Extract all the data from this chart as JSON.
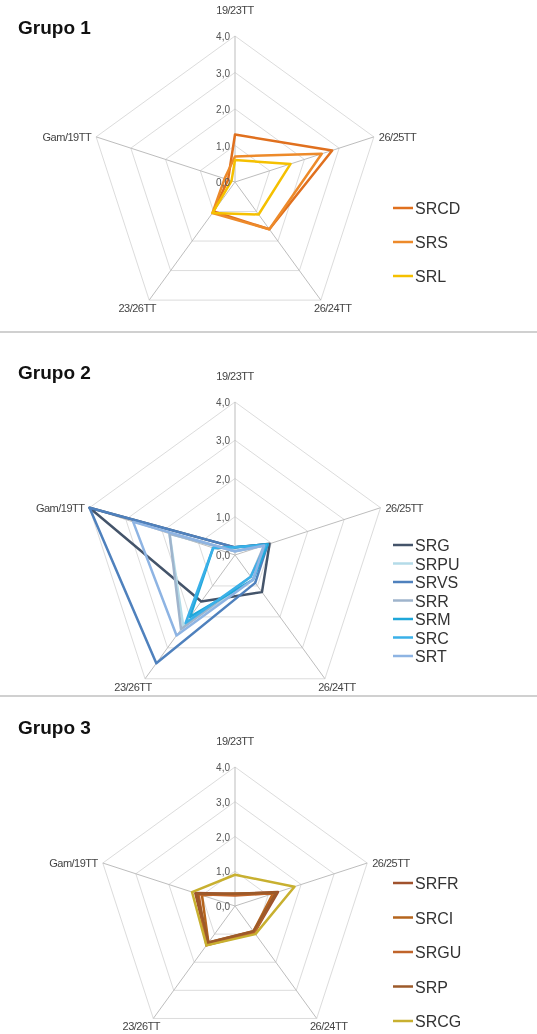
{
  "chart_data": [
    {
      "type": "radar",
      "title": "Grupo 1",
      "categories": [
        "19/23TT",
        "26/25TT",
        "26/24TT",
        "23/26TT",
        "Gam/19TT"
      ],
      "ylim": [
        0,
        4
      ],
      "yticks": [
        {
          "value": 0,
          "label": "0,0"
        },
        {
          "value": 1,
          "label": "1,0"
        },
        {
          "value": 2,
          "label": "2,0"
        },
        {
          "value": 3,
          "label": "3,0"
        },
        {
          "value": 4,
          "label": "4,0"
        }
      ],
      "grid": true,
      "legend": "right",
      "series": [
        {
          "name": "SRCD",
          "color": "#e0701e",
          "values": [
            1.3,
            2.8,
            1.6,
            1.0,
            0.2
          ]
        },
        {
          "name": "SRS",
          "color": "#ed8a2a",
          "values": [
            0.7,
            2.5,
            1.6,
            1.05,
            0.3
          ]
        },
        {
          "name": "SRL",
          "color": "#f5c000",
          "values": [
            0.6,
            1.6,
            1.1,
            1.05,
            0.1
          ]
        }
      ]
    },
    {
      "type": "radar",
      "title": "Grupo 2",
      "categories": [
        "19/23TT",
        "26/25TT",
        "26/24TT",
        "23/26TT",
        "Gam/19TT"
      ],
      "ylim": [
        0,
        4
      ],
      "yticks": [
        {
          "value": 0,
          "label": "0,0"
        },
        {
          "value": 1,
          "label": "1,0"
        },
        {
          "value": 2,
          "label": "2,0"
        },
        {
          "value": 3,
          "label": "3,0"
        },
        {
          "value": 4,
          "label": "4,0"
        }
      ],
      "grid": true,
      "legend": "right",
      "series": [
        {
          "name": "SRG",
          "color": "#44546a",
          "values": [
            0.2,
            0.95,
            1.2,
            1.5,
            4.0
          ]
        },
        {
          "name": "SRPU",
          "color": "#b4dbe8",
          "values": [
            0.1,
            0.8,
            0.8,
            2.3,
            1.8
          ]
        },
        {
          "name": "SRVS",
          "color": "#4f81bd",
          "values": [
            0.2,
            0.9,
            0.9,
            3.5,
            4.0
          ]
        },
        {
          "name": "SRR",
          "color": "#9fb4cc",
          "values": [
            0.1,
            0.8,
            0.7,
            2.4,
            1.8
          ]
        },
        {
          "name": "SRM",
          "color": "#1fa7d9",
          "values": [
            0.2,
            0.9,
            0.8,
            2.0,
            0.6
          ]
        },
        {
          "name": "SRC",
          "color": "#3ab0e8",
          "values": [
            0.2,
            0.85,
            0.7,
            2.2,
            0.6
          ]
        },
        {
          "name": "SRT",
          "color": "#8eb4e3",
          "values": [
            0.1,
            0.8,
            0.8,
            2.6,
            2.8
          ]
        }
      ]
    },
    {
      "type": "radar",
      "title": "Grupo 3",
      "categories": [
        "19/23TT",
        "26/25TT",
        "26/24TT",
        "23/26TT",
        "Gam/19TT"
      ],
      "ylim": [
        0,
        4
      ],
      "yticks": [
        {
          "value": 0,
          "label": "0,0"
        },
        {
          "value": 1,
          "label": "1,0"
        },
        {
          "value": 2,
          "label": "2,0"
        },
        {
          "value": 3,
          "label": "3,0"
        },
        {
          "value": 4,
          "label": "4,0"
        }
      ],
      "grid": true,
      "legend": "right",
      "series": [
        {
          "name": "SRFR",
          "color": "#a0522d",
          "values": [
            0.35,
            1.3,
            0.95,
            1.35,
            1.2
          ]
        },
        {
          "name": "SRCI",
          "color": "#b5651d",
          "values": [
            0.35,
            1.15,
            0.9,
            1.3,
            1.0
          ]
        },
        {
          "name": "SRGU",
          "color": "#c0642a",
          "values": [
            0.3,
            1.2,
            0.95,
            1.4,
            1.1
          ]
        },
        {
          "name": "SRP",
          "color": "#9c5a2a",
          "values": [
            0.35,
            1.25,
            0.9,
            1.3,
            1.15
          ]
        },
        {
          "name": "SRCG",
          "color": "#c8b030",
          "values": [
            0.9,
            1.8,
            1.0,
            1.4,
            1.3
          ]
        }
      ]
    }
  ]
}
